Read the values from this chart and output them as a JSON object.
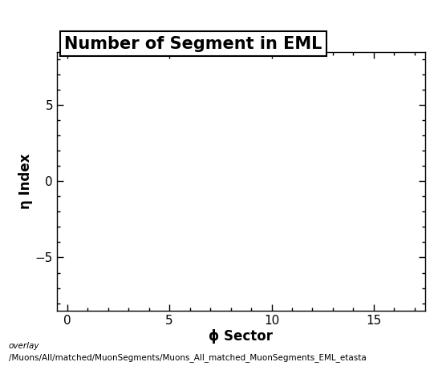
{
  "title": "Number of Segment in EML",
  "xlabel": "ϕ Sector",
  "ylabel": "η Index",
  "xlim": [
    -0.5,
    17.5
  ],
  "ylim": [
    -8.5,
    8.5
  ],
  "xticks": [
    0,
    5,
    10,
    15
  ],
  "yticks": [
    -5,
    0,
    5
  ],
  "background_color": "#ffffff",
  "plot_bg_color": "#ffffff",
  "footer_text1": "overlay",
  "footer_text2": "/Muons/All/matched/MuonSegments/Muons_All_matched_MuonSegments_EML_etasta",
  "title_fontsize": 15,
  "label_fontsize": 12,
  "tick_fontsize": 11,
  "footer_fontsize": 7.5
}
